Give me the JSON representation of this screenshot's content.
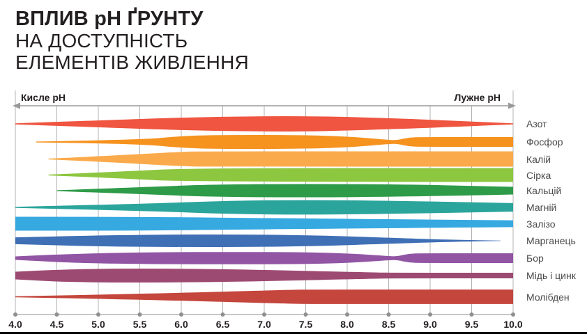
{
  "title": {
    "line1": "ВПЛИВ pH ҐРУНТУ",
    "line2": "НА ДОСТУПНІСТЬ",
    "line3": "ЕЛЕМЕНТІВ ЖИВЛЕННЯ"
  },
  "axis": {
    "left_label": "Кисле pH",
    "right_label": "Лужне pH",
    "tick_labels": [
      "4.0",
      "4.5",
      "5.0",
      "5.5",
      "6.0",
      "6.5",
      "7.0",
      "7.5",
      "8.0",
      "8.5",
      "9.0",
      "9.5",
      "10.0"
    ]
  },
  "chart_data": {
    "type": "area",
    "title": "Вплив pH ґрунту на доступність елементів живлення",
    "xlabel": "pH",
    "x_range": [
      4.0,
      10.0
    ],
    "x_ticks": [
      4.0,
      4.5,
      5.0,
      5.5,
      6.0,
      6.5,
      7.0,
      7.5,
      8.0,
      8.5,
      9.0,
      9.5,
      10.0
    ],
    "grid": true,
    "legend_position": "right",
    "value_meaning": "relative availability 0..1 encoded as band thickness vs pH",
    "series": [
      {
        "name": "Азот",
        "color": "#ef5540",
        "profile": [
          [
            4.0,
            0.07
          ],
          [
            5.0,
            0.45
          ],
          [
            6.5,
            1.0
          ],
          [
            8.0,
            1.0
          ],
          [
            10.0,
            0.07
          ]
        ]
      },
      {
        "name": "Фосфор",
        "color": "#f6921e",
        "profile": [
          [
            4.25,
            0.05
          ],
          [
            5.5,
            0.27
          ],
          [
            6.0,
            0.77
          ],
          [
            6.4,
            0.91
          ],
          [
            7.4,
            0.91
          ],
          [
            8.0,
            0.73
          ],
          [
            8.5,
            0.27
          ],
          [
            8.6,
            0.23
          ],
          [
            8.75,
            0.6
          ],
          [
            8.9,
            0.64
          ],
          [
            10.0,
            0.64
          ]
        ]
      },
      {
        "name": "Калій",
        "color": "#fbaa4b",
        "profile": [
          [
            4.4,
            0.05
          ],
          [
            5.2,
            0.45
          ],
          [
            6.0,
            0.95
          ],
          [
            6.3,
            1.0
          ],
          [
            10.0,
            1.0
          ]
        ]
      },
      {
        "name": "Сірка",
        "color": "#8dc63f",
        "profile": [
          [
            4.4,
            0.05
          ],
          [
            5.3,
            0.45
          ],
          [
            6.1,
            0.91
          ],
          [
            10.0,
            0.91
          ]
        ]
      },
      {
        "name": "Кальцій",
        "color": "#2e9b48",
        "profile": [
          [
            4.5,
            0.05
          ],
          [
            5.5,
            0.45
          ],
          [
            6.5,
            0.86
          ],
          [
            8.5,
            0.86
          ],
          [
            10.0,
            0.5
          ]
        ]
      },
      {
        "name": "Магній",
        "color": "#2ba59c",
        "profile": [
          [
            4.0,
            0.07
          ],
          [
            5.5,
            0.45
          ],
          [
            6.8,
            0.95
          ],
          [
            8.2,
            0.95
          ],
          [
            10.0,
            0.55
          ]
        ]
      },
      {
        "name": "Залізо",
        "color": "#36a9e1",
        "profile": [
          [
            4.0,
            0.91
          ],
          [
            5.5,
            0.91
          ],
          [
            7.0,
            0.73
          ],
          [
            10.0,
            0.45
          ]
        ]
      },
      {
        "name": "Марганець",
        "color": "#3f6fb5",
        "profile": [
          [
            4.0,
            0.45
          ],
          [
            5.3,
            0.82
          ],
          [
            7.3,
            0.82
          ],
          [
            8.6,
            0.36
          ],
          [
            9.2,
            0.14
          ],
          [
            9.85,
            0.02
          ]
        ]
      },
      {
        "name": "Бор",
        "color": "#9155a4",
        "profile": [
          [
            4.0,
            0.23
          ],
          [
            5.0,
            0.77
          ],
          [
            7.3,
            0.82
          ],
          [
            8.0,
            0.64
          ],
          [
            8.5,
            0.27
          ],
          [
            8.6,
            0.23
          ],
          [
            8.75,
            0.6
          ],
          [
            8.9,
            0.64
          ],
          [
            10.0,
            0.64
          ]
        ]
      },
      {
        "name": "Мідь і цинк",
        "color": "#9d4a73",
        "profile": [
          [
            4.0,
            0.5
          ],
          [
            4.7,
            0.91
          ],
          [
            6.3,
            0.91
          ],
          [
            8.3,
            0.41
          ],
          [
            8.6,
            0.36
          ],
          [
            10.0,
            0.36
          ]
        ]
      },
      {
        "name": "Молібден",
        "color": "#c4463c",
        "profile": [
          [
            4.0,
            0.07
          ],
          [
            5.5,
            0.36
          ],
          [
            7.3,
            0.91
          ],
          [
            7.6,
            0.95
          ],
          [
            10.0,
            0.95
          ]
        ]
      }
    ]
  },
  "colors": {
    "text_dark": "#231f20",
    "grid": "#b3b3b3",
    "axis_arrow": "#999999",
    "tick_dot": "#8f8f8f"
  }
}
